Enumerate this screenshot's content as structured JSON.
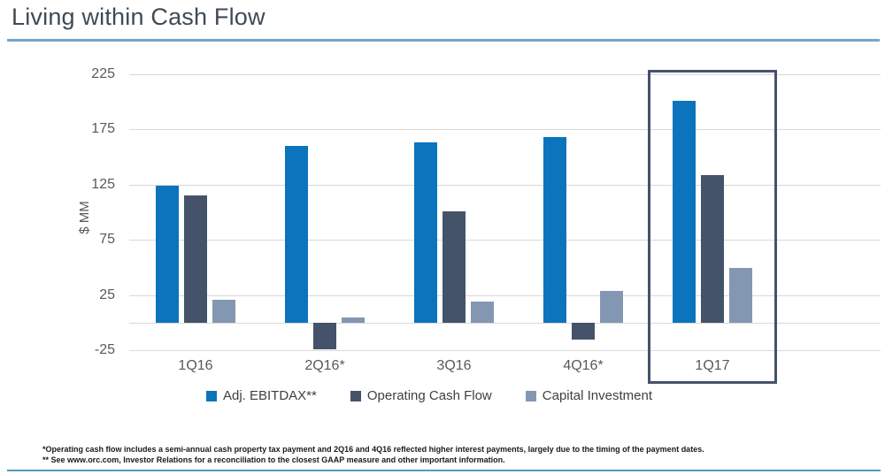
{
  "title": "Living within Cash Flow",
  "colors": {
    "title_text": "#3f4a54",
    "title_underline": "#72a7cb",
    "gridline": "#d9d9d9",
    "axis_text": "#595959",
    "highlight_border": "#44536a",
    "bottom_line": "#4f9cc7"
  },
  "chart_data": {
    "type": "bar",
    "title": "Living within Cash Flow",
    "xlabel": "",
    "ylabel": "$ MM",
    "units": "$ MM",
    "categories": [
      "1Q16",
      "2Q16*",
      "3Q16",
      "4Q16*",
      "1Q17"
    ],
    "series": [
      {
        "name": "Adj. EBITDAX**",
        "color": "#0b74bd",
        "values": [
          124,
          160,
          163,
          168,
          201
        ]
      },
      {
        "name": "Operating Cash Flow",
        "color": "#44536a",
        "values": [
          115,
          -24,
          101,
          -15,
          134
        ]
      },
      {
        "name": "Capital Investment",
        "color": "#8497b2",
        "values": [
          21,
          5,
          19,
          29,
          50
        ]
      }
    ],
    "yticks": [
      225,
      175,
      125,
      75,
      25,
      -25
    ],
    "ylim": [
      -45,
      240
    ],
    "grid": true,
    "legend_position": "bottom",
    "highlight_category": "1Q17"
  },
  "footnotes": [
    "*Operating cash flow includes a semi-annual cash property tax payment and 2Q16 and 4Q16 reflected higher interest payments, largely due to the timing of the payment dates.",
    "** See www.orc.com, Investor Relations for a reconciliation to the closest GAAP measure and other important information."
  ]
}
